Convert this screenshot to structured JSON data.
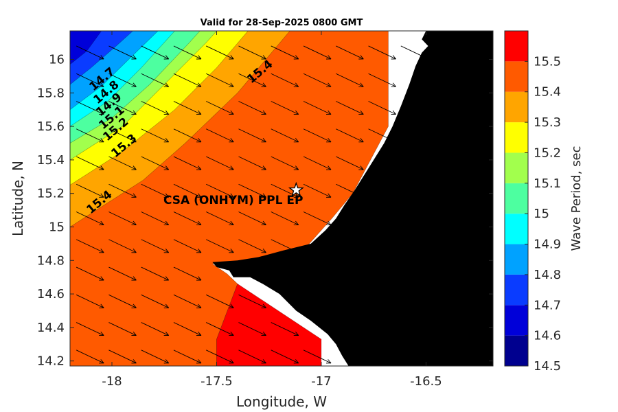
{
  "title": "Valid for 28-Sep-2025 0800 GMT",
  "colors": {
    "c14_5": "#00008f",
    "c14_6": "#0000d9",
    "c14_7": "#0a3cff",
    "c14_8": "#00a2ff",
    "c14_9": "#00ffff",
    "c15_0": "#4dffa0",
    "c15_1": "#a2ff4d",
    "c15_2": "#ffff00",
    "c15_3": "#ffa500",
    "c15_4": "#ff5a00",
    "c15_5": "#ff0000",
    "land": "#000000",
    "nodata": "#ffffff"
  },
  "chart_data": {
    "type": "heatmap",
    "title": "Valid for 28-Sep-2025 0800 GMT",
    "xlabel": "Longitude, W",
    "ylabel": "Latitude, N",
    "xlim": [
      -18.2,
      -16.18
    ],
    "ylim": [
      14.17,
      16.17
    ],
    "xticks": [
      -18,
      -17.5,
      -17,
      -16.5
    ],
    "xtick_labels": [
      "-18",
      "-17.5",
      "-17",
      "-16.5"
    ],
    "yticks": [
      14.2,
      14.4,
      14.6,
      14.8,
      15,
      15.2,
      15.4,
      15.6,
      15.8,
      16
    ],
    "ytick_labels": [
      "14.2",
      "14.4",
      "14.6",
      "14.8",
      "15",
      "15.2",
      "15.4",
      "15.6",
      "15.8",
      "16"
    ],
    "colorbar": {
      "label": "Wave Period, sec",
      "levels": [
        14.5,
        14.6,
        14.7,
        14.8,
        14.9,
        15.0,
        15.1,
        15.2,
        15.3,
        15.4,
        15.5
      ],
      "tick_labels": [
        "14.5",
        "14.6",
        "14.7",
        "14.8",
        "14.9",
        "15",
        "15.1",
        "15.2",
        "15.3",
        "15.4",
        "15.5"
      ]
    },
    "contour_labels": [
      "14.7",
      "14.8",
      "14.9",
      "15.1",
      "15.2",
      "15.3",
      "15.4",
      "15.4"
    ],
    "station": {
      "name": "CSA (ONHYM) PPL EP",
      "lon": -17.12,
      "lat": 15.22
    },
    "arrow_direction": "south-east",
    "fields": [
      {
        "level": 15.4,
        "poly": [
          [
            -18.2,
            14.17
          ],
          [
            -17.5,
            14.17
          ],
          [
            -17.5,
            14.33
          ],
          [
            -17.4,
            14.66
          ],
          [
            -17.45,
            14.72
          ],
          [
            -17.52,
            14.78
          ],
          [
            -17.1,
            14.84
          ],
          [
            -16.95,
            15.05
          ],
          [
            -16.85,
            15.2
          ],
          [
            -16.68,
            15.6
          ],
          [
            -16.68,
            16.17
          ],
          [
            -17.7,
            16.17
          ],
          [
            -18.2,
            15.8
          ]
        ]
      },
      {
        "level": 15.5,
        "poly": [
          [
            -17.5,
            14.17
          ],
          [
            -17.0,
            14.17
          ],
          [
            -17.0,
            14.33
          ],
          [
            -17.4,
            14.66
          ],
          [
            -17.5,
            14.33
          ]
        ]
      },
      {
        "level": 15.3,
        "poly": [
          [
            -18.2,
            15.0
          ],
          [
            -17.85,
            15.28
          ],
          [
            -17.65,
            15.5
          ],
          [
            -17.4,
            15.8
          ],
          [
            -17.15,
            16.17
          ],
          [
            -17.7,
            16.17
          ],
          [
            -18.2,
            16.17
          ]
        ]
      },
      {
        "level": 15.2,
        "poly": [
          [
            -18.2,
            15.25
          ],
          [
            -17.95,
            15.45
          ],
          [
            -17.7,
            15.7
          ],
          [
            -17.5,
            15.95
          ],
          [
            -17.35,
            16.17
          ],
          [
            -18.2,
            16.17
          ]
        ]
      },
      {
        "level": 15.1,
        "poly": [
          [
            -18.2,
            15.4
          ],
          [
            -17.95,
            15.6
          ],
          [
            -17.75,
            15.85
          ],
          [
            -17.55,
            16.1
          ],
          [
            -17.5,
            16.17
          ],
          [
            -18.2,
            16.17
          ]
        ]
      },
      {
        "level": 15.0,
        "poly": [
          [
            -18.2,
            15.5
          ],
          [
            -18.0,
            15.65
          ],
          [
            -17.82,
            15.85
          ],
          [
            -17.63,
            16.1
          ],
          [
            -17.58,
            16.17
          ],
          [
            -18.2,
            16.17
          ]
        ]
      },
      {
        "level": 14.9,
        "poly": [
          [
            -18.2,
            15.6
          ],
          [
            -18.02,
            15.75
          ],
          [
            -17.86,
            15.95
          ],
          [
            -17.7,
            16.17
          ],
          [
            -18.2,
            16.17
          ]
        ]
      },
      {
        "level": 14.8,
        "poly": [
          [
            -18.2,
            15.7
          ],
          [
            -18.05,
            15.84
          ],
          [
            -17.92,
            16.0
          ],
          [
            -17.78,
            16.17
          ],
          [
            -18.2,
            16.17
          ]
        ]
      },
      {
        "level": 14.7,
        "poly": [
          [
            -18.2,
            15.85
          ],
          [
            -18.1,
            15.95
          ],
          [
            -17.98,
            16.08
          ],
          [
            -17.9,
            16.17
          ],
          [
            -18.2,
            16.17
          ]
        ]
      },
      {
        "level": 14.6,
        "poly": [
          [
            -18.2,
            15.97
          ],
          [
            -18.12,
            16.05
          ],
          [
            -18.05,
            16.17
          ],
          [
            -18.2,
            16.17
          ]
        ]
      }
    ]
  }
}
